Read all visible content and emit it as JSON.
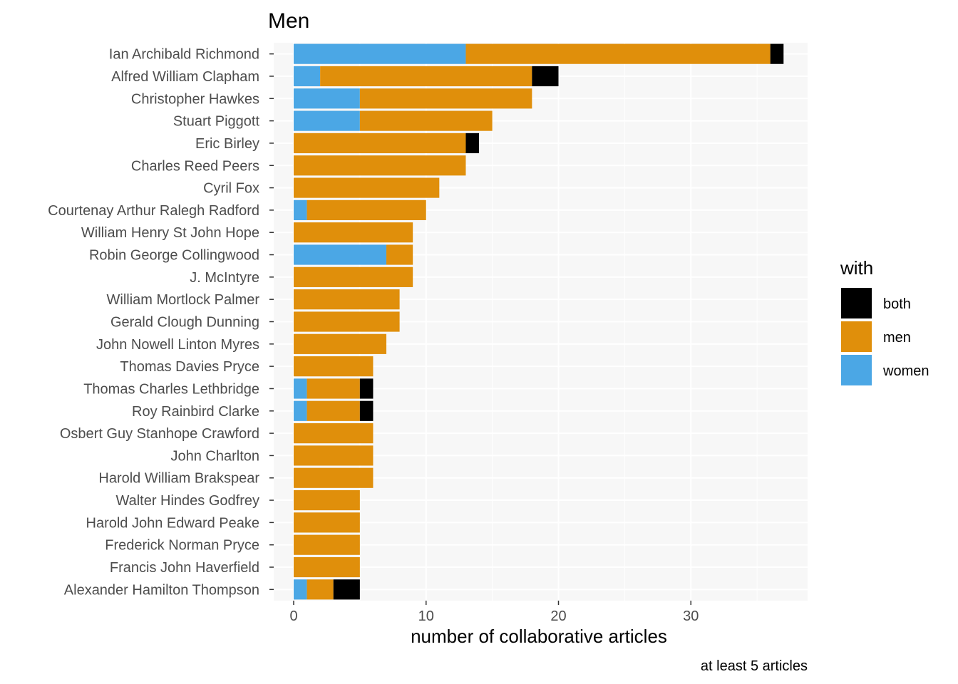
{
  "chart_data": {
    "type": "bar",
    "orientation": "horizontal",
    "stacked": true,
    "title": "Men",
    "xlabel": "number of collaborative articles",
    "ylabel": "",
    "caption": "at least 5 articles",
    "xlim": [
      -1.5,
      39.5
    ],
    "xticks": [
      0,
      10,
      20,
      30
    ],
    "grid": true,
    "legend": {
      "title": "with",
      "position": "right",
      "entries": [
        "both",
        "men",
        "women"
      ]
    },
    "colors": {
      "women": "#4BA7E5",
      "men": "#E08F0B",
      "both": "#000000",
      "panel": "#F7F7F7",
      "grid": "#FFFFFF"
    },
    "categories": [
      "Ian Archibald Richmond",
      "Alfred William Clapham",
      "Christopher Hawkes",
      "Stuart Piggott",
      "Eric Birley",
      "Charles Reed Peers",
      "Cyril Fox",
      "Courtenay Arthur Ralegh Radford",
      "William Henry St John Hope",
      "Robin George Collingwood",
      "J. McIntyre",
      "William Mortlock Palmer",
      "Gerald Clough Dunning",
      "John Nowell Linton Myres",
      "Thomas Davies Pryce",
      "Thomas Charles Lethbridge",
      "Roy Rainbird Clarke",
      "Osbert Guy Stanhope Crawford",
      "John Charlton",
      "Harold William Brakspear",
      "Walter Hindes Godfrey",
      "Harold John Edward Peake",
      "Frederick Norman Pryce",
      "Francis John Haverfield",
      "Alexander Hamilton Thompson"
    ],
    "series": [
      {
        "name": "women",
        "values": [
          13,
          2,
          5,
          5,
          0,
          0,
          0,
          1,
          0,
          7,
          0,
          0,
          0,
          0,
          0,
          1,
          1,
          0,
          0,
          0,
          0,
          0,
          0,
          0,
          1
        ]
      },
      {
        "name": "men",
        "values": [
          23,
          16,
          13,
          10,
          13,
          13,
          11,
          9,
          9,
          2,
          9,
          8,
          8,
          7,
          6,
          4,
          4,
          6,
          6,
          6,
          5,
          5,
          5,
          5,
          2
        ]
      },
      {
        "name": "both",
        "values": [
          1,
          2,
          0,
          0,
          1,
          0,
          0,
          0,
          0,
          0,
          0,
          0,
          0,
          0,
          0,
          1,
          1,
          0,
          0,
          0,
          0,
          0,
          0,
          0,
          2
        ]
      }
    ]
  }
}
